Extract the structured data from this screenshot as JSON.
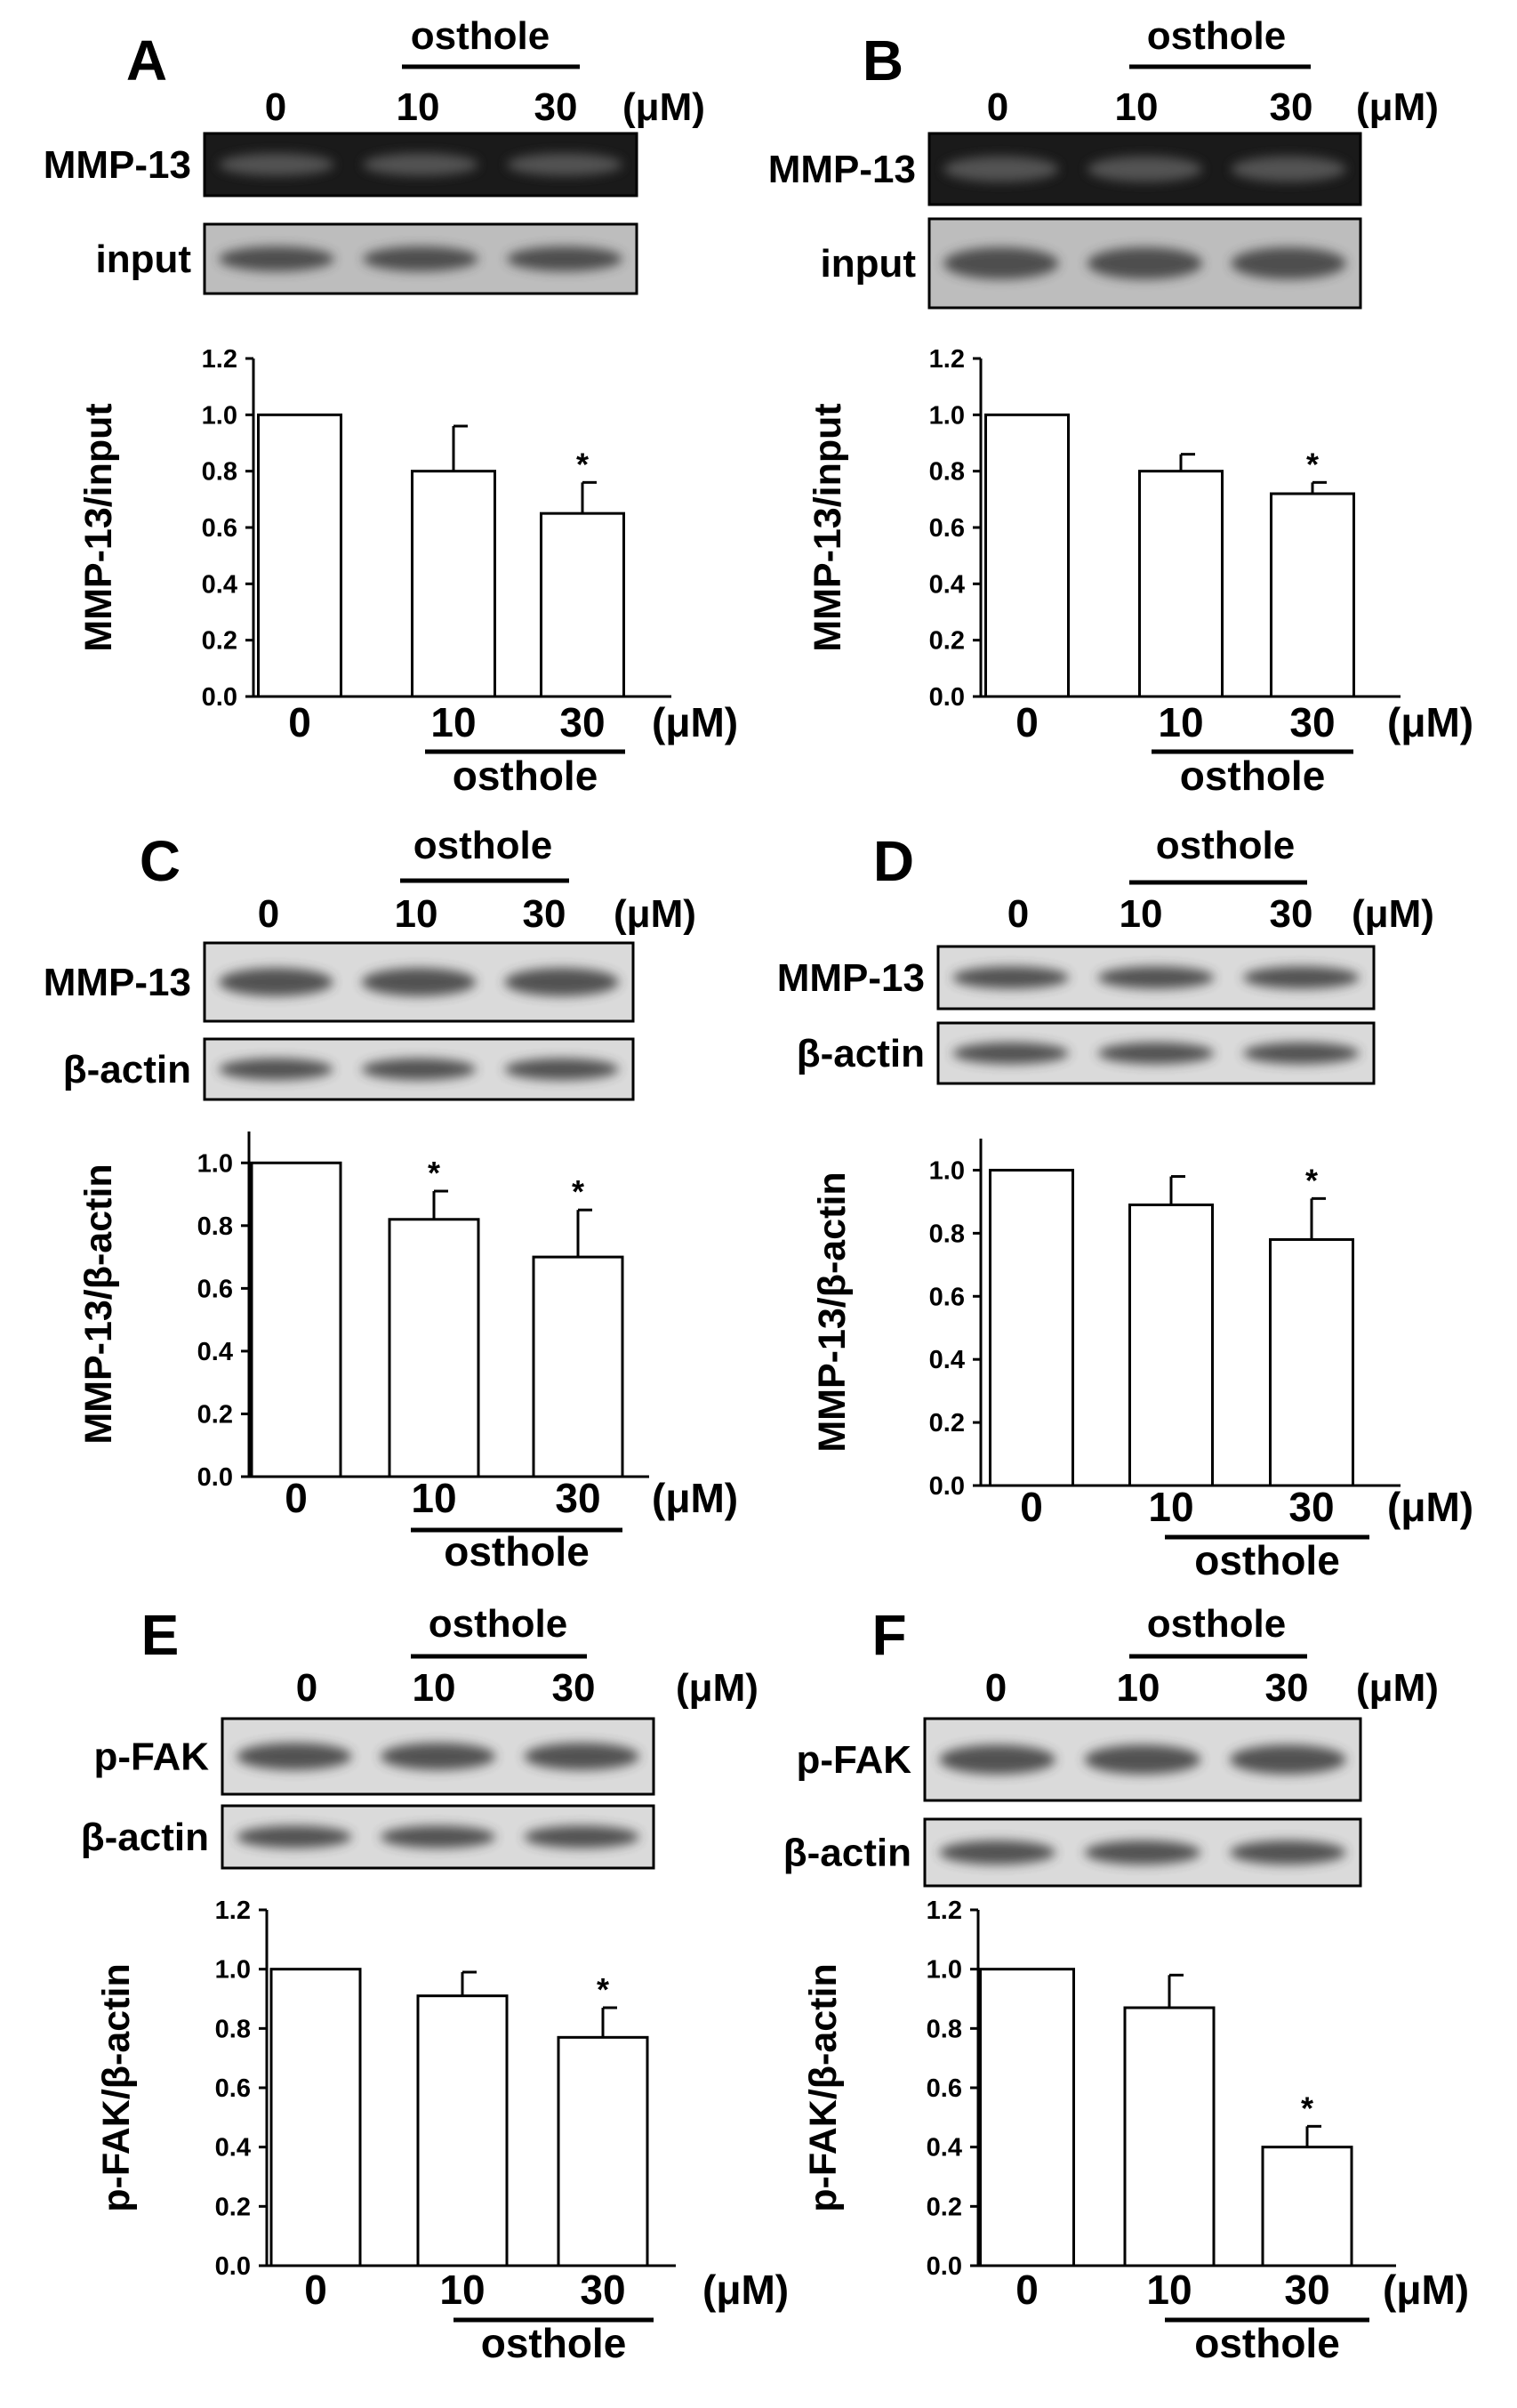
{
  "colors": {
    "foreground": "#000000",
    "background": "#ffffff",
    "bar_fill": "#ffffff"
  },
  "shared": {
    "treatment": "osthole",
    "unit": "(μM)",
    "dose_labels": [
      "0",
      "10",
      "30"
    ],
    "significance_marker": "*"
  },
  "panels": [
    {
      "letter": "A",
      "blot_labels": [
        "MMP-13",
        "input"
      ],
      "blot_style": "dark"
    },
    {
      "letter": "B",
      "blot_labels": [
        "MMP-13",
        "input"
      ],
      "blot_style": "dark"
    },
    {
      "letter": "C",
      "blot_labels": [
        "MMP-13",
        "β-actin"
      ],
      "blot_style": "light"
    },
    {
      "letter": "D",
      "blot_labels": [
        "MMP-13",
        "β-actin"
      ],
      "blot_style": "light"
    },
    {
      "letter": "E",
      "blot_labels": [
        "p-FAK",
        "β-actin"
      ],
      "blot_style": "light"
    },
    {
      "letter": "F",
      "blot_labels": [
        "p-FAK",
        "β-actin"
      ],
      "blot_style": "light"
    }
  ],
  "chart_data": [
    {
      "panel": "A",
      "type": "bar",
      "categories": [
        "0",
        "10",
        "30"
      ],
      "values": [
        1.0,
        0.8,
        0.65
      ],
      "errors": [
        0,
        0.16,
        0.11
      ],
      "significant": [
        false,
        false,
        true
      ],
      "ylabel": "MMP-13/input",
      "ylim": [
        0,
        1.2
      ],
      "yticks": [
        "0.0",
        "0.2",
        "0.4",
        "0.6",
        "0.8",
        "1.0",
        "1.2"
      ],
      "xlabel": "osthole",
      "unit": "(μM)"
    },
    {
      "panel": "B",
      "type": "bar",
      "categories": [
        "0",
        "10",
        "30"
      ],
      "values": [
        1.0,
        0.8,
        0.72
      ],
      "errors": [
        0,
        0.06,
        0.04
      ],
      "significant": [
        false,
        false,
        true
      ],
      "ylabel": "MMP-13/input",
      "ylim": [
        0,
        1.2
      ],
      "yticks": [
        "0.0",
        "0.2",
        "0.4",
        "0.6",
        "0.8",
        "1.0",
        "1.2"
      ],
      "xlabel": "osthole",
      "unit": "(μM)"
    },
    {
      "panel": "C",
      "type": "bar",
      "categories": [
        "0",
        "10",
        "30"
      ],
      "values": [
        1.0,
        0.82,
        0.7
      ],
      "errors": [
        0,
        0.09,
        0.15
      ],
      "significant": [
        false,
        true,
        true
      ],
      "ylabel": "MMP-13/β-actin",
      "ylim": [
        0,
        1.1
      ],
      "yticks": [
        "0.0",
        "0.2",
        "0.4",
        "0.6",
        "0.8",
        "1.0"
      ],
      "xlabel": "osthole",
      "unit": "(μM)"
    },
    {
      "panel": "D",
      "type": "bar",
      "categories": [
        "0",
        "10",
        "30"
      ],
      "values": [
        1.0,
        0.89,
        0.78
      ],
      "errors": [
        0,
        0.09,
        0.13
      ],
      "significant": [
        false,
        false,
        true
      ],
      "ylabel": "MMP-13/β-actin",
      "ylim": [
        0,
        1.1
      ],
      "yticks": [
        "0.0",
        "0.2",
        "0.4",
        "0.6",
        "0.8",
        "1.0"
      ],
      "xlabel": "osthole",
      "unit": "(μM)"
    },
    {
      "panel": "E",
      "type": "bar",
      "categories": [
        "0",
        "10",
        "30"
      ],
      "values": [
        1.0,
        0.91,
        0.77
      ],
      "errors": [
        0,
        0.08,
        0.1
      ],
      "significant": [
        false,
        false,
        true
      ],
      "ylabel": "p-FAK/β-actin",
      "ylim": [
        0,
        1.2
      ],
      "yticks": [
        "0.0",
        "0.2",
        "0.4",
        "0.6",
        "0.8",
        "1.0",
        "1.2"
      ],
      "xlabel": "osthole",
      "unit": "(μM)"
    },
    {
      "panel": "F",
      "type": "bar",
      "categories": [
        "0",
        "10",
        "30"
      ],
      "values": [
        1.0,
        0.87,
        0.4
      ],
      "errors": [
        0,
        0.11,
        0.07
      ],
      "significant": [
        false,
        false,
        true
      ],
      "ylabel": "p-FAK/β-actin",
      "ylim": [
        0,
        1.2
      ],
      "yticks": [
        "0.0",
        "0.2",
        "0.4",
        "0.6",
        "0.8",
        "1.0",
        "1.2"
      ],
      "xlabel": "osthole",
      "unit": "(μM)"
    }
  ]
}
